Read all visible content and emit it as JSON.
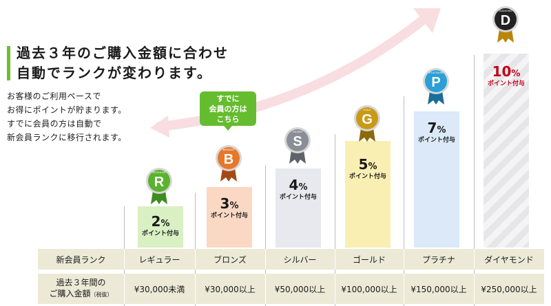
{
  "heading": {
    "line1": "過去３年のご購入金額に合わせ",
    "line2": "自動でランクが変わります。"
  },
  "description": [
    "お客様のご利用ペースで",
    "お得にポイントが貯まります。",
    "すでに会員の方は自動で",
    "新会員ランクに移行されます。"
  ],
  "callout": [
    "すでに",
    "会員の方は",
    "こちら"
  ],
  "colors": {
    "accent_green": "#6cbd32",
    "callout_green": "#66bc2f",
    "regular_bar": "#d9f0c3",
    "bronze_bar": "#fbd8c4",
    "silver_bar": "#e7e9ee",
    "gold_bar": "#faefb2",
    "platinum_bar": "#dbe9f8",
    "diamond_red": "#c2001b",
    "table_bg": "#ece9d6"
  },
  "ranks": [
    {
      "key": "regular",
      "badge_label": "REGULAR",
      "letter": "R",
      "percent": "2",
      "unit": "%",
      "point_label": "ポイント付与",
      "name": "レギュラー",
      "amount": "¥30,000未満",
      "badge_color": "#5bb22e",
      "icon": "regular-badge-icon"
    },
    {
      "key": "bronze",
      "badge_label": "BRONZE",
      "letter": "B",
      "percent": "3",
      "unit": "%",
      "point_label": "ポイント付与",
      "name": "ブロンズ",
      "amount": "¥30,000以上",
      "badge_color": "#e5782b",
      "icon": "bronze-badge-icon"
    },
    {
      "key": "silver",
      "badge_label": "SILVER",
      "letter": "S",
      "percent": "4",
      "unit": "%",
      "point_label": "ポイント付与",
      "name": "シルバー",
      "amount": "¥50,000以上",
      "badge_color": "#8a8e96",
      "icon": "silver-badge-icon"
    },
    {
      "key": "gold",
      "badge_label": "GOLD",
      "letter": "G",
      "percent": "5",
      "unit": "%",
      "point_label": "ポイント付与",
      "name": "ゴールド",
      "amount": "¥100,000以上",
      "badge_color": "#c99a17",
      "icon": "gold-badge-icon"
    },
    {
      "key": "platinum",
      "badge_label": "PLATINUM",
      "letter": "P",
      "percent": "7",
      "unit": "%",
      "point_label": "ポイント付与",
      "name": "プラチナ",
      "amount": "¥150,000以上",
      "badge_color": "#2a9fd8",
      "icon": "platinum-badge-icon"
    },
    {
      "key": "diamond",
      "badge_label": "DIAMOND",
      "letter": "D",
      "percent": "10",
      "unit": "%",
      "point_label": "ポイント付与",
      "name": "ダイヤモンド",
      "amount": "¥250,000以上",
      "badge_color": "#222222",
      "icon": "diamond-badge-icon"
    }
  ],
  "table": {
    "rank_header": "新会員ランク",
    "amount_header_line1": "過去３年間の",
    "amount_header_line2": "ご購入金額",
    "amount_header_note": "（税抜）"
  }
}
